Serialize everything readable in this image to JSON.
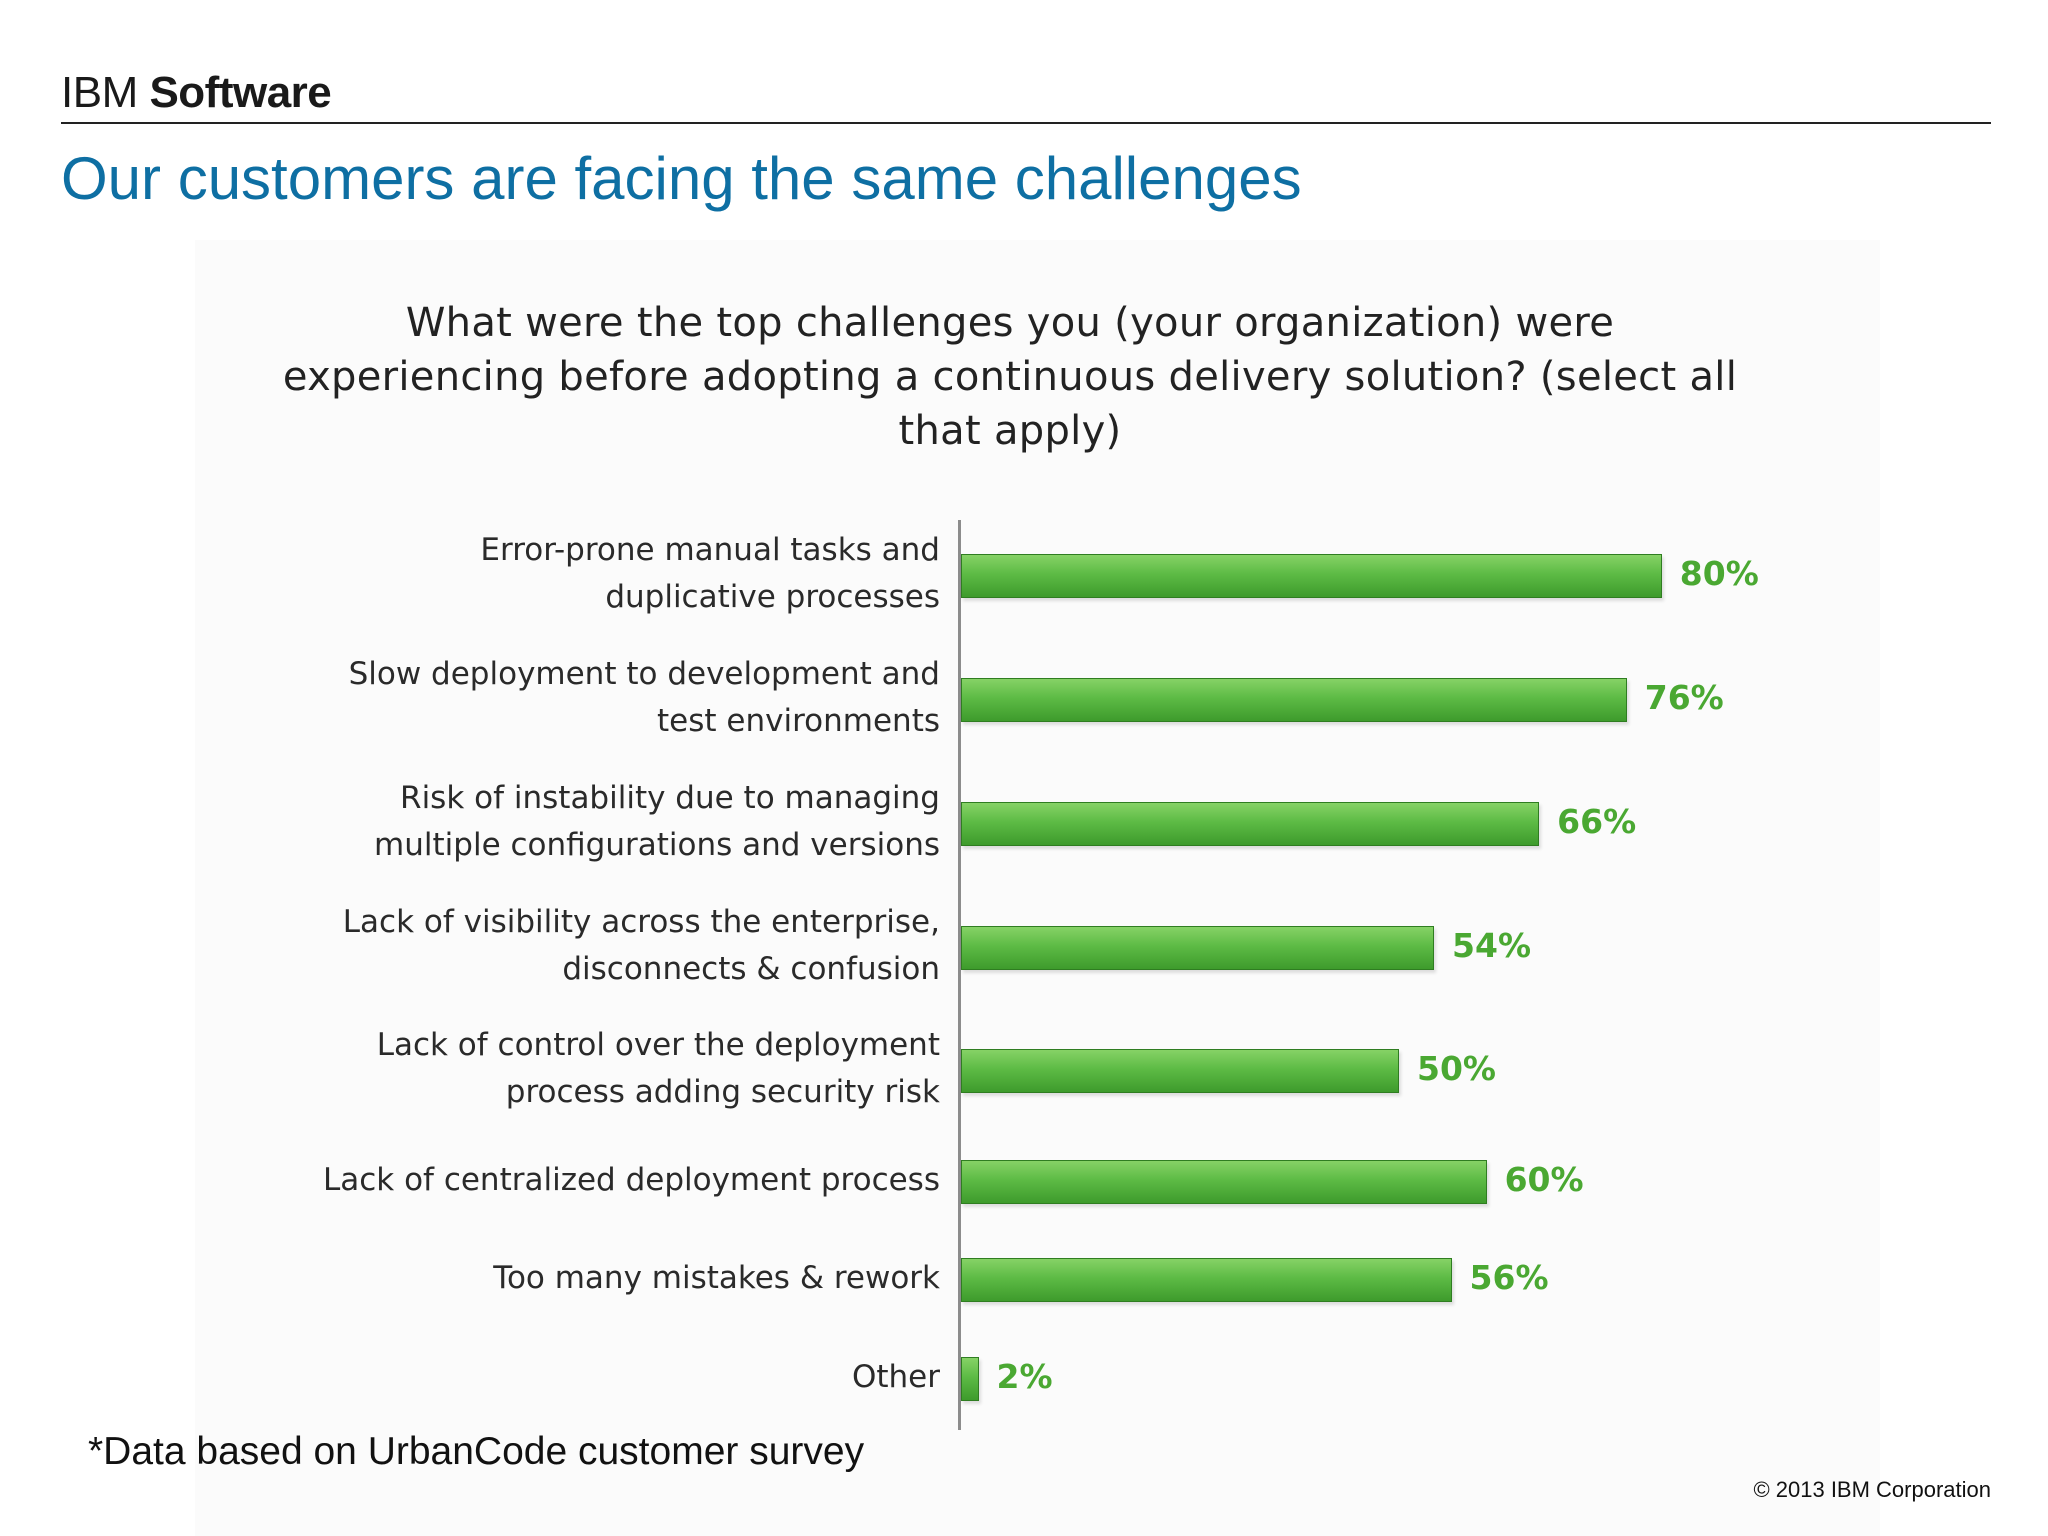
{
  "header": {
    "brand_light": "IBM ",
    "brand_bold": "Software",
    "title": "Our customers are facing the same challenges"
  },
  "chart_data": {
    "type": "bar",
    "orientation": "horizontal",
    "title": "What were the top challenges you (your organization) were experiencing before adopting a continuous delivery solution? (select all that apply)",
    "categories": [
      "Error-prone manual tasks and\nduplicative processes",
      "Slow deployment to development and\ntest environments",
      "Risk of instability due to managing\nmultiple configurations and versions",
      "Lack of visibility across the enterprise,\ndisconnects & confusion",
      "Lack of control over the deployment\nprocess adding security risk",
      "Lack of centralized deployment process",
      "Too many mistakes & rework",
      "Other"
    ],
    "values": [
      80,
      76,
      66,
      54,
      50,
      60,
      56,
      2
    ],
    "value_labels": [
      "80%",
      "76%",
      "66%",
      "54%",
      "50%",
      "60%",
      "56%",
      "2%"
    ],
    "unit": "%",
    "xlim": [
      0,
      100
    ],
    "bar_color": "#5dbb45",
    "label_color": "#4aa832",
    "grid": false,
    "legend": "none"
  },
  "footer": {
    "footnote": "*Data based on UrbanCode customer survey",
    "copyright": "© 2013 IBM Corporation"
  }
}
